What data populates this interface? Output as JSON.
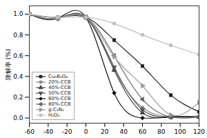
{
  "chart_data": {
    "type": "line",
    "ylabel": "降解率 (%)",
    "x": [
      -60,
      -30,
      0,
      30,
      60,
      90,
      120
    ],
    "xlim": [
      -60,
      120
    ],
    "ylim": [
      -0.05,
      1.08
    ],
    "xticks": [
      -60,
      -40,
      -20,
      0,
      20,
      40,
      60,
      80,
      100,
      120
    ],
    "yticks": [
      {
        "value": 0,
        "label": "0.0"
      },
      0.2,
      0.4,
      0.6,
      0.8,
      {
        "value": 1,
        "label": "1.0"
      }
    ],
    "legend": "lower left",
    "series": [
      {
        "name": "Cu₃B₂O₆",
        "color": "#222222",
        "marker": "square",
        "line_style": "solid",
        "values": [
          1.0,
          0.97,
          0.97,
          0.75,
          0.5,
          0.22,
          0.06
        ]
      },
      {
        "name": "20%-CCB",
        "color": "#888888",
        "marker": "circle",
        "line_style": "solid",
        "values": [
          1.0,
          0.96,
          0.97,
          0.47,
          0.1,
          0.01,
          0.01
        ]
      },
      {
        "name": "40%-CCB",
        "color": "#444444",
        "marker": "triangle-up",
        "line_style": "solid",
        "values": [
          1.0,
          0.96,
          0.97,
          0.46,
          0.05,
          0.01,
          0.01
        ]
      },
      {
        "name": "50%-CCB",
        "color": "#555555",
        "marker": "triangle-down",
        "line_style": "solid",
        "values": [
          1.0,
          0.96,
          0.97,
          0.49,
          0.08,
          0.01,
          0.01
        ]
      },
      {
        "name": "60%-CCB",
        "color": "#111111",
        "marker": "diamond",
        "line_style": "solid",
        "values": [
          1.0,
          0.96,
          0.97,
          0.24,
          0.0,
          0.01,
          0.01
        ]
      },
      {
        "name": "80%-CCB",
        "color": "#666666",
        "marker": "triangle-left",
        "line_style": "solid",
        "values": [
          1.0,
          0.96,
          0.97,
          0.6,
          0.18,
          0.01,
          0.01
        ]
      },
      {
        "name": "g-C₃N₄",
        "color": "#999999",
        "marker": "triangle-right",
        "line_style": "solid",
        "values": [
          1.0,
          0.96,
          0.97,
          0.59,
          0.31,
          0.03,
          0.15
        ]
      },
      {
        "name": "H₂O₂",
        "color": "#c0c0c0",
        "marker": "circle",
        "line_style": "solid",
        "values": [
          1.0,
          0.97,
          0.97,
          0.91,
          0.8,
          0.7,
          0.61
        ]
      }
    ]
  }
}
